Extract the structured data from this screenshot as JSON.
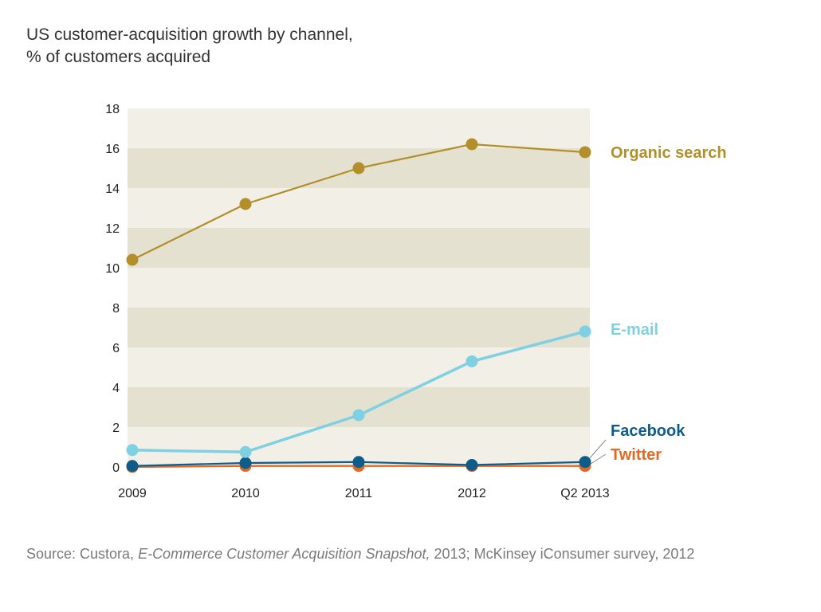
{
  "title": {
    "line1": "US customer-acquisition growth by channel,",
    "line2": "% of customers acquired"
  },
  "source": {
    "prefix": "Source: Custora, ",
    "italic": "E-Commerce Customer Acquisition Snapshot,",
    "suffix": " 2013; McKinsey iConsumer survey, 2012"
  },
  "chart_data": {
    "type": "line",
    "title": "US customer-acquisition growth by channel, % of customers acquired",
    "xlabel": "",
    "ylabel": "% of customers acquired",
    "categories": [
      "2009",
      "2010",
      "2011",
      "2012",
      "Q2 2013"
    ],
    "ylim": [
      0,
      18
    ],
    "yticks": [
      0,
      2,
      4,
      6,
      8,
      10,
      12,
      14,
      16,
      18
    ],
    "grid": "alternating horizontal bands",
    "series": [
      {
        "name": "Organic search",
        "color": "#B38F2C",
        "values": [
          10.4,
          13.2,
          15.0,
          16.2,
          15.8
        ]
      },
      {
        "name": "E-mail",
        "color": "#7FD0E3",
        "values": [
          0.85,
          0.75,
          2.6,
          5.3,
          6.8
        ]
      },
      {
        "name": "Facebook",
        "color": "#0D5C8A",
        "values": [
          0.05,
          0.2,
          0.25,
          0.1,
          0.25
        ]
      },
      {
        "name": "Twitter",
        "color": "#E06A24",
        "values": [
          0.0,
          0.05,
          0.05,
          0.05,
          0.05
        ]
      }
    ],
    "band_colors": [
      "#F1EFE6",
      "#E4E1D0"
    ],
    "connector_color": "#888888"
  }
}
